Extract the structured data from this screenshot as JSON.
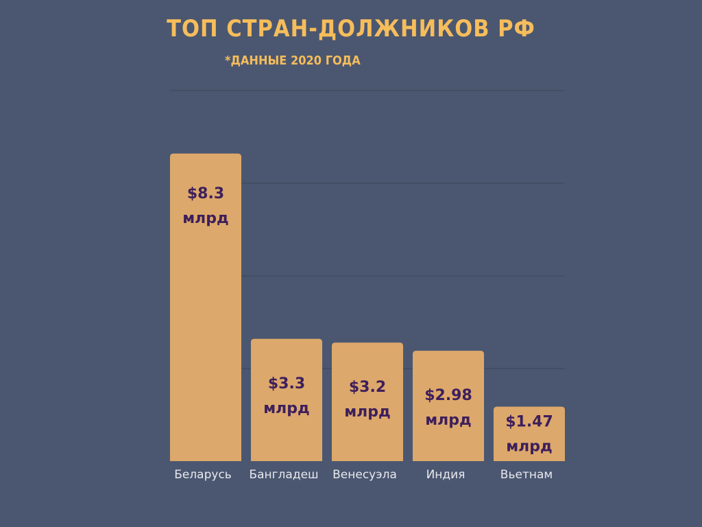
{
  "header": {
    "title": "ТОП СТРАН-ДОЛЖНИКОВ РФ",
    "subtitle": "*ДАННЫЕ 2020 ГОДА"
  },
  "chart_data": {
    "type": "bar",
    "categories": [
      "Беларусь",
      "Бангладеш",
      "Венесуэла",
      "Индия",
      "Вьетнам"
    ],
    "values": [
      8.3,
      3.3,
      3.2,
      2.98,
      1.47
    ],
    "labels": [
      "$8.3",
      "$3.3",
      "$3.2",
      "$2.98",
      "$1.47"
    ],
    "unit": "млрд",
    "ylim": [
      0,
      10
    ],
    "grid": true,
    "bar_color": "#dda86b",
    "grid_color": "#3a4456"
  }
}
